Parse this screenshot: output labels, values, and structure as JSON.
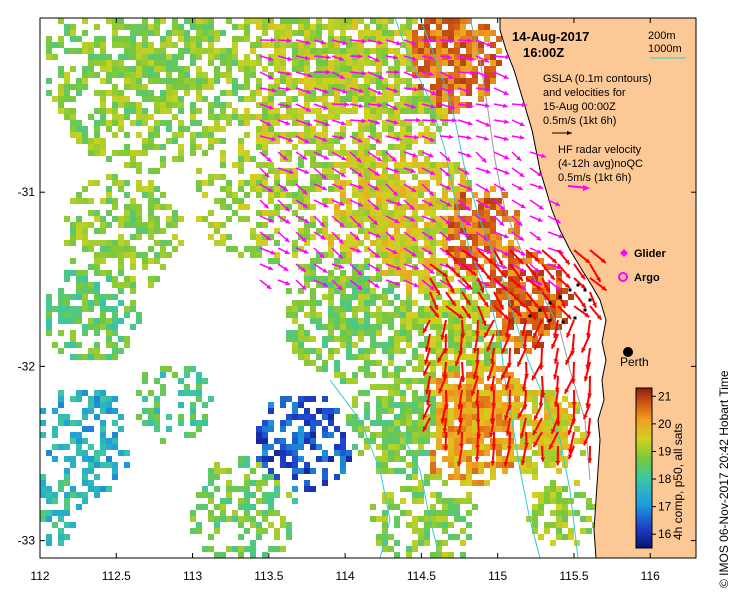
{
  "header": {
    "date": "14-Aug-2017",
    "time": "16:00Z"
  },
  "scale_legend": {
    "label_200m": "200m",
    "label_1000m": "1000m",
    "color_200m": "#808080",
    "color_1000m": "#33cccc"
  },
  "legend": {
    "gsla_line1": "GSLA (0.1m contours)",
    "gsla_line2": "and velocities for",
    "gsla_line3": "15-Aug 00:00Z",
    "gsla_line4": "0.5m/s (1kt 6h)",
    "hf_line1": "HF radar velocity",
    "hf_line2": "(4-12h avg)noQC",
    "hf_line3": "0.5m/s (1kt 6h)",
    "glider_label": "Glider",
    "argo_label": "Argo",
    "glider_color": "#ff00ff",
    "argo_color": "#ff00ff"
  },
  "place": {
    "city": "Perth"
  },
  "colorbar": {
    "ticks": [
      "21",
      "20",
      "19",
      "18",
      "17",
      "16"
    ],
    "label": "4h comp, p50, all sats",
    "min": 15.5,
    "max": 21.3
  },
  "side_label": "©  IMOS 06-Nov-2017 20:42 Hobart Time",
  "axes": {
    "x_ticks": [
      "112",
      "112.5",
      "113",
      "113.5",
      "114",
      "114.5",
      "115",
      "115.5",
      "116"
    ],
    "y_ticks": [
      "-31",
      "-32",
      "-33"
    ],
    "lon_range": [
      112,
      116.3
    ],
    "lat_range": [
      -33.1,
      -30.0
    ]
  },
  "colors": {
    "land": "#fcc896",
    "sea_bg": "#ffffff",
    "hf_arrow": "#ff0000",
    "gsla_arrow": "#ff00ff",
    "glider_track": "#000000"
  }
}
